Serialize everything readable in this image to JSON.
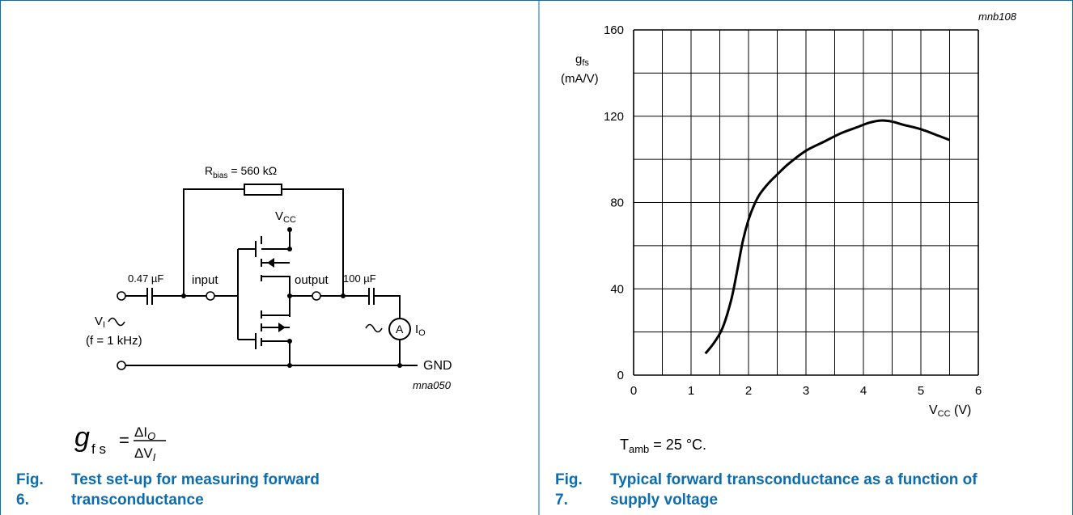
{
  "fig6": {
    "caption_number": "Fig. 6.",
    "caption_text": "Test set-up for measuring forward transconductance",
    "code": "mna050",
    "r_bias_label": "R",
    "r_bias_sub": "bias",
    "r_bias_value": " = 560 kΩ",
    "vcc_main": "V",
    "vcc_sub": "CC",
    "cap_left": "0.47 µF",
    "cap_right": "100 µF",
    "input_label": "input",
    "output_label": "output",
    "vi_main": "V",
    "vi_sub": "I",
    "freq_label": "(f = 1 kHz)",
    "ammeter_label": "A",
    "io_main": "I",
    "io_sub": "O",
    "gnd_label": "GND",
    "formula": {
      "lhs_main": "g",
      "lhs_sub": "f s",
      "equals": "=",
      "num": "ΔI",
      "num_sub": "O",
      "den": "ΔV",
      "den_sub": "I"
    }
  },
  "fig7": {
    "caption_number": "Fig. 7.",
    "caption_text": "Typical forward transconductance as a function of supply voltage",
    "code": "mnb108",
    "tamb_main": "T",
    "tamb_sub": "amb",
    "tamb_value": " = 25 °C."
  },
  "chart_data": {
    "type": "line",
    "title": "",
    "ylabel_main": "g",
    "ylabel_sub": "fs",
    "ylabel_unit": "(mA/V)",
    "xlabel_main": "V",
    "xlabel_sub": "CC",
    "xlabel_unit": " (V)",
    "xlim": [
      0,
      6
    ],
    "ylim": [
      0,
      160
    ],
    "x_ticks": [
      0,
      1,
      2,
      3,
      4,
      5,
      6
    ],
    "y_ticks": [
      0,
      40,
      80,
      120,
      160
    ],
    "grid": true,
    "grid_x_step": 0.5,
    "grid_y_step": 20,
    "series": [
      {
        "x": [
          1.25,
          1.4,
          1.55,
          1.7,
          1.8,
          1.9,
          2.0,
          2.1,
          2.2,
          2.35,
          2.5,
          2.7,
          3.0,
          3.3,
          3.6,
          3.9,
          4.1,
          4.3,
          4.5,
          4.7,
          5.0,
          5.3,
          5.5
        ],
        "y": [
          10,
          15,
          22,
          35,
          48,
          62,
          72,
          79,
          84,
          89,
          93,
          98,
          104,
          108,
          112,
          115,
          117,
          118,
          117.5,
          116,
          114,
          111,
          109
        ]
      }
    ]
  }
}
